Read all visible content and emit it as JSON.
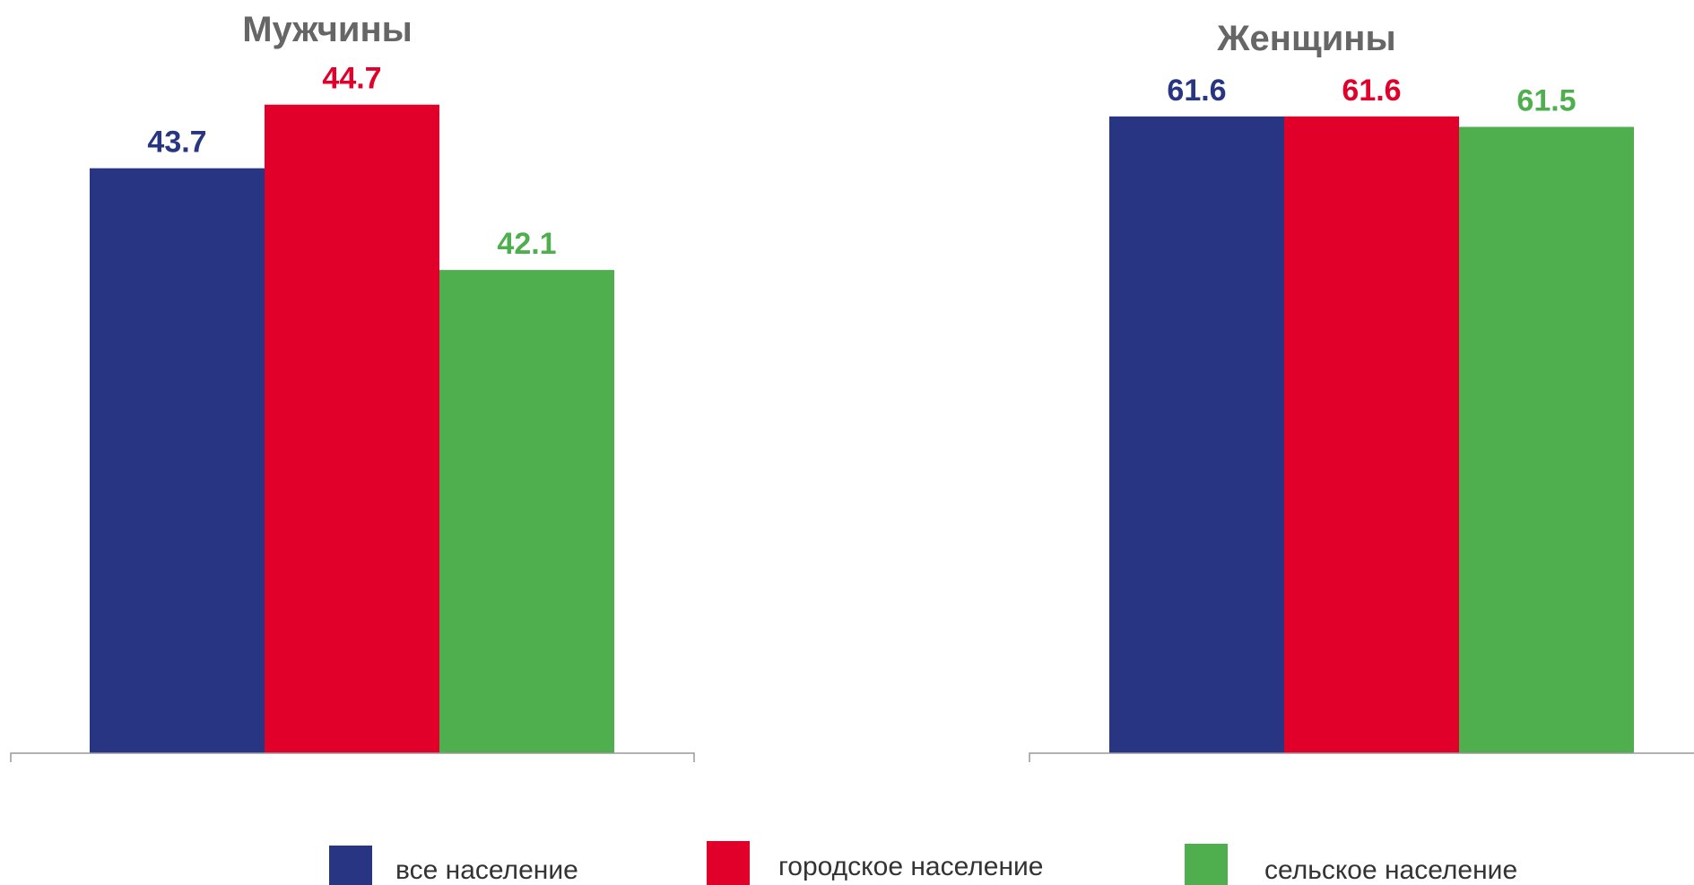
{
  "chart_data": [
    {
      "type": "bar",
      "title": "Мужчины",
      "categories": [
        "все население",
        "городское население",
        "сельское население"
      ],
      "values": [
        43.7,
        44.7,
        42.1
      ],
      "value_labels": [
        "43.7",
        "44.7",
        "42.1"
      ],
      "ylim": [
        34.5,
        45.5
      ]
    },
    {
      "type": "bar",
      "title": "Женщины",
      "categories": [
        "все население",
        "городское население",
        "сельское население"
      ],
      "values": [
        61.6,
        61.6,
        61.5
      ],
      "value_labels": [
        "61.6",
        "61.6",
        "61.5"
      ],
      "ylim": [
        55.5,
        62.2
      ]
    }
  ],
  "legend": {
    "placement": "bottom",
    "items": [
      {
        "label": "все население",
        "color": "#283583"
      },
      {
        "label": "городское население",
        "color": "#E1002A"
      },
      {
        "label": "сельское население",
        "color": "#4FAF4F"
      }
    ]
  }
}
